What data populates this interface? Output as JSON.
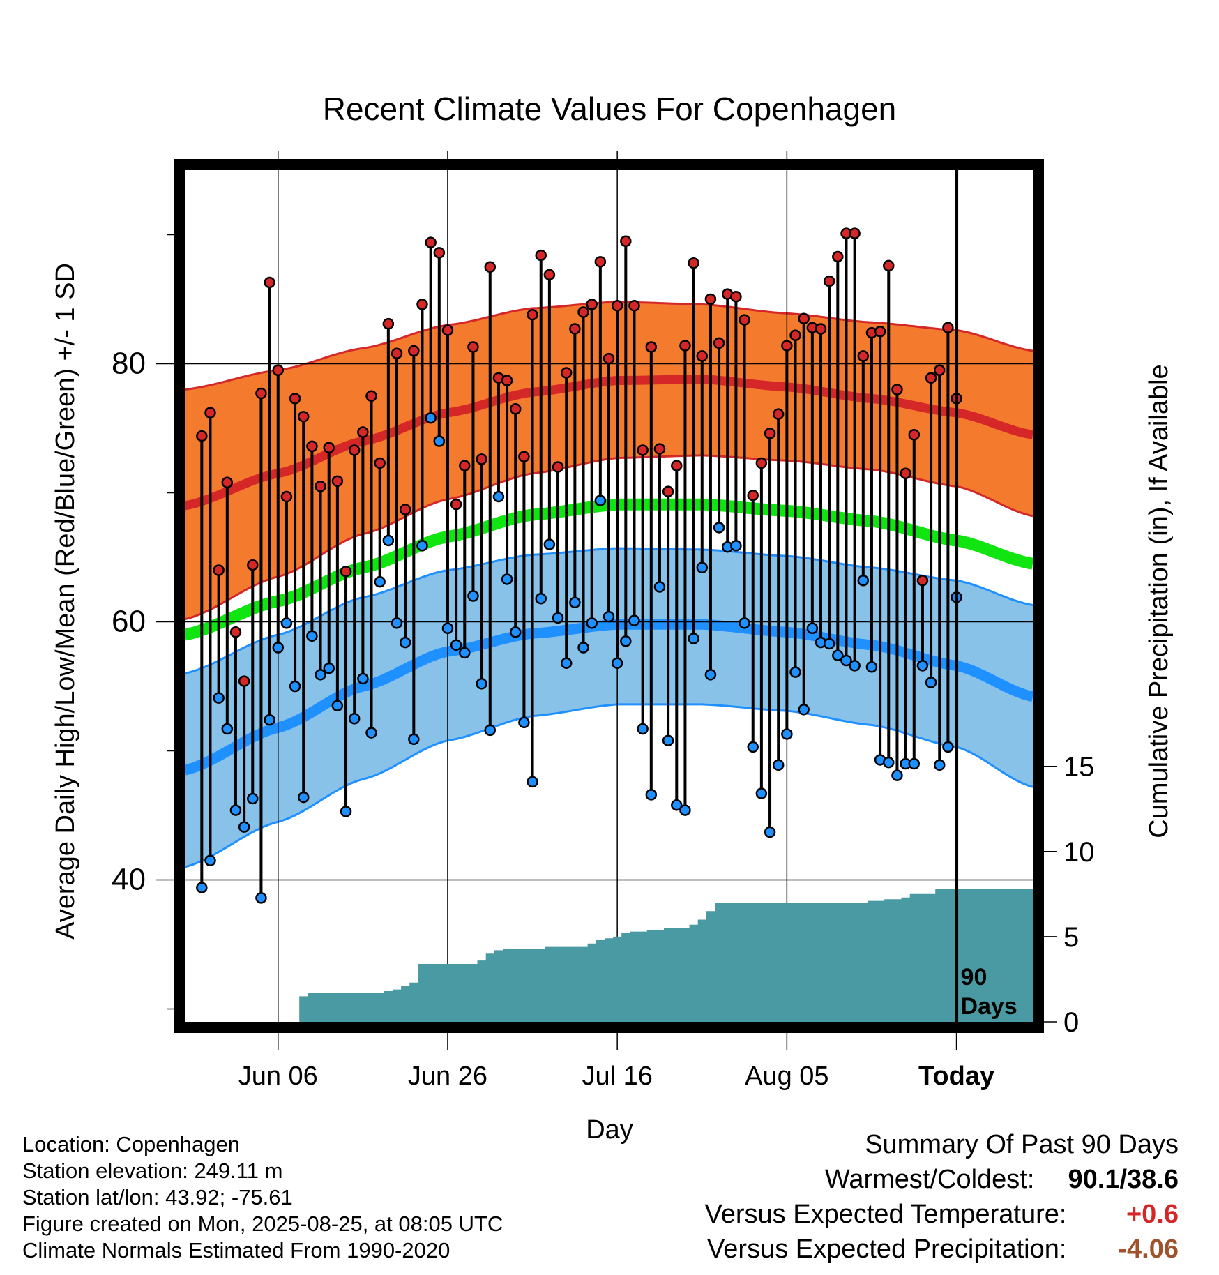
{
  "title": "Recent Climate Values For Copenhagen",
  "colors": {
    "high_band": "#f47b2e",
    "high_edge": "#d62728",
    "high_mean": "#d62728",
    "mean_band": "#11e511",
    "low_band": "#88c2e8",
    "low_edge": "#1f90ff",
    "low_mean": "#1f90ff",
    "precip": "#4a9aa3",
    "marker_high": "#d62728",
    "marker_low": "#1f90ff",
    "frame": "#000000"
  },
  "chart_data": {
    "type": "line",
    "title": "Recent Climate Values For Copenhagen",
    "xlabel": "Day",
    "ylabel": "Average Daily High/Low/Mean (Red/Blue/Green) +/- 1 SD",
    "y2label": "Cumulative Precipitation (in), If Available",
    "x_ticks": [
      "Jun 06",
      "Jun 26",
      "Jul 16",
      "Aug 05",
      "Today"
    ],
    "y_ticks": [
      40,
      60,
      80
    ],
    "y2_ticks": [
      0,
      5,
      10,
      15
    ],
    "ylim": [
      29,
      95
    ],
    "y2lim": [
      0,
      50
    ],
    "today_annotation": "90 Days",
    "normals": {
      "x": [
        "May 26",
        "Jun 06",
        "Jun 16",
        "Jun 26",
        "Jul 06",
        "Jul 16",
        "Jul 26",
        "Aug 05",
        "Aug 15",
        "Aug 25",
        "Sep 03"
      ],
      "high_mean": [
        69.0,
        71.5,
        74.0,
        76.2,
        77.8,
        78.7,
        78.8,
        78.2,
        77.3,
        76.2,
        74.5
      ],
      "high_upper": [
        78.0,
        79.5,
        81.2,
        83.0,
        84.3,
        84.8,
        84.6,
        83.9,
        83.2,
        82.6,
        81.0
      ],
      "high_lower": [
        60.2,
        63.5,
        66.8,
        69.5,
        71.5,
        72.7,
        72.9,
        72.5,
        71.8,
        70.5,
        68.2
      ],
      "mean": [
        59.0,
        61.6,
        64.2,
        66.6,
        68.3,
        69.1,
        69.1,
        68.6,
        67.8,
        66.3,
        64.5
      ],
      "low_mean": [
        48.5,
        51.8,
        55.0,
        57.7,
        59.1,
        59.8,
        59.8,
        59.2,
        58.2,
        56.6,
        54.2
      ],
      "low_upper": [
        56.0,
        59.0,
        61.9,
        64.0,
        65.2,
        65.7,
        65.6,
        65.1,
        64.2,
        63.2,
        61.3
      ],
      "low_lower": [
        41.0,
        44.5,
        47.8,
        50.8,
        52.7,
        53.6,
        53.6,
        53.1,
        52.0,
        50.3,
        47.2
      ]
    },
    "series": [
      {
        "name": "Daily High",
        "values": [
          74.4,
          76.2,
          64.0,
          70.8,
          59.2,
          55.4,
          64.4,
          77.7,
          86.3,
          79.5,
          69.7,
          77.3,
          75.9,
          73.6,
          70.5,
          73.5,
          70.9,
          63.9,
          73.3,
          74.7,
          77.5,
          72.3,
          83.1,
          80.8,
          68.7,
          81.0,
          84.6,
          89.4,
          88.6,
          82.6,
          69.1,
          72.1,
          81.3,
          72.6,
          87.5,
          78.9,
          78.7,
          76.5,
          72.8,
          83.8,
          88.4,
          86.9,
          72.0,
          79.3,
          82.7,
          84.0,
          84.6,
          87.9,
          80.4,
          84.5,
          89.5,
          84.5,
          73.3,
          81.3,
          73.4,
          70.1,
          72.1,
          81.4,
          87.8,
          80.6,
          85.0,
          81.6,
          85.4,
          85.2,
          83.4,
          69.8,
          72.3,
          74.6,
          76.1,
          81.4,
          82.2,
          83.5,
          82.8,
          82.7,
          86.4,
          88.3,
          90.1,
          90.1,
          80.6,
          82.4,
          82.5,
          87.6,
          78.0,
          71.5,
          74.5,
          63.2,
          78.9,
          79.5,
          82.8,
          77.3
        ]
      },
      {
        "name": "Daily Low",
        "values": [
          39.4,
          41.5,
          54.1,
          51.7,
          45.4,
          44.1,
          46.3,
          38.6,
          52.4,
          58.0,
          59.9,
          55.0,
          46.4,
          58.9,
          55.9,
          56.4,
          53.5,
          45.3,
          52.5,
          55.6,
          51.4,
          63.1,
          66.3,
          59.9,
          58.4,
          50.9,
          65.9,
          75.8,
          74.0,
          59.5,
          58.2,
          57.6,
          62.0,
          55.2,
          51.6,
          69.7,
          63.3,
          59.2,
          52.2,
          47.6,
          61.8,
          66.0,
          60.3,
          56.8,
          61.5,
          58.0,
          59.9,
          69.4,
          60.4,
          56.8,
          58.5,
          60.1,
          51.7,
          46.6,
          62.7,
          50.8,
          45.8,
          45.4,
          58.7,
          64.2,
          55.9,
          67.3,
          65.8,
          65.9,
          59.9,
          50.3,
          46.7,
          43.7,
          48.9,
          51.3,
          56.1,
          53.2,
          59.5,
          58.4,
          58.3,
          57.4,
          57.0,
          56.6,
          63.2,
          56.5,
          49.3,
          49.1,
          48.1,
          49.0,
          49.0,
          56.6,
          55.3,
          48.9,
          50.3,
          61.9
        ]
      },
      {
        "name": "Cumulative Precipitation",
        "values": [
          0.0,
          0.0,
          0.0,
          0.0,
          0.0,
          0.0,
          0.0,
          0.0,
          0.0,
          0.0,
          0.0,
          0.0,
          1.5,
          1.7,
          1.7,
          1.7,
          1.7,
          1.7,
          1.7,
          1.7,
          1.7,
          1.7,
          1.8,
          1.9,
          2.1,
          2.3,
          3.4,
          3.4,
          3.4,
          3.4,
          3.4,
          3.4,
          3.4,
          3.6,
          4.0,
          4.2,
          4.3,
          4.3,
          4.3,
          4.3,
          4.3,
          4.4,
          4.4,
          4.4,
          4.4,
          4.4,
          4.6,
          4.8,
          4.9,
          5.0,
          5.2,
          5.3,
          5.3,
          5.4,
          5.4,
          5.5,
          5.5,
          5.5,
          5.7,
          6.0,
          6.5,
          7.0,
          7.0,
          7.0,
          7.0,
          7.0,
          7.0,
          7.0,
          7.0,
          7.0,
          7.0,
          7.0,
          7.0,
          7.0,
          7.0,
          7.0,
          7.0,
          7.0,
          7.0,
          7.1,
          7.1,
          7.2,
          7.2,
          7.3,
          7.5,
          7.5,
          7.5,
          7.8,
          7.8,
          7.8
        ]
      }
    ]
  },
  "info": {
    "location": "Location: Copenhagen",
    "elevation": "Station elevation: 249.11 m",
    "latlon": "Station lat/lon: 43.92; -75.61",
    "created": "Figure created on Mon, 2025-08-25, at 08:05 UTC",
    "normals_period": "Climate Normals Estimated From 1990-2020"
  },
  "summary": {
    "heading": "Summary Of Past 90 Days",
    "warm_cold_label": "Warmest/Coldest:",
    "warm_cold_value": "90.1/38.6",
    "temp_label": "Versus Expected Temperature:",
    "temp_value": "+0.6",
    "temp_color": "#d62728",
    "precip_label": "Versus Expected Precipitation:",
    "precip_value": "-4.06",
    "precip_color": "#a0522d"
  }
}
